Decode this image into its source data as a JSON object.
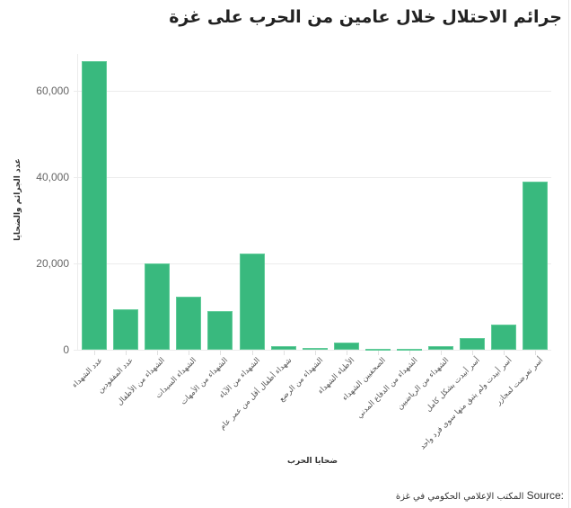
{
  "chart_data": {
    "type": "bar",
    "title": "جرائم الاحتلال خلال عامين من الحرب على غزة",
    "xlabel": "ضحايا الحرب",
    "ylabel": "عدد الجرائم والضحايا",
    "ylim": [
      0,
      70000
    ],
    "yticks": [
      "0",
      "20,000",
      "40,000",
      "60,000"
    ],
    "grid": true,
    "bar_color": "#39b97e",
    "categories": [
      "عدد الشهداء",
      "عدد المفقودين",
      "الشهداء من الأطفال",
      "الشهداء السيدات",
      "الشهداء من الأمهات",
      "الشهداء من الآباء",
      "شهداء أطفال أقل من عمر عام",
      "الشهداء من الرضع",
      "الأطباء الشهداء",
      "الصحفيين الشهداء",
      "الشهداء من الدفاع المدني",
      "الشهداء من الرياضيين",
      "أسر أبيدت بشكل كامل",
      "أسر أبيدت ولم يتبق منها سوى فرد واحد",
      "أسر تعرضت لمجازر"
    ],
    "values": [
      67000,
      9500,
      20000,
      12400,
      9000,
      22400,
      1000,
      450,
      1670,
      250,
      140,
      800,
      2700,
      6000,
      39000
    ]
  },
  "source": {
    "label": "Source:",
    "text": "المكتب الإعلامي الحكومي في غزة"
  }
}
